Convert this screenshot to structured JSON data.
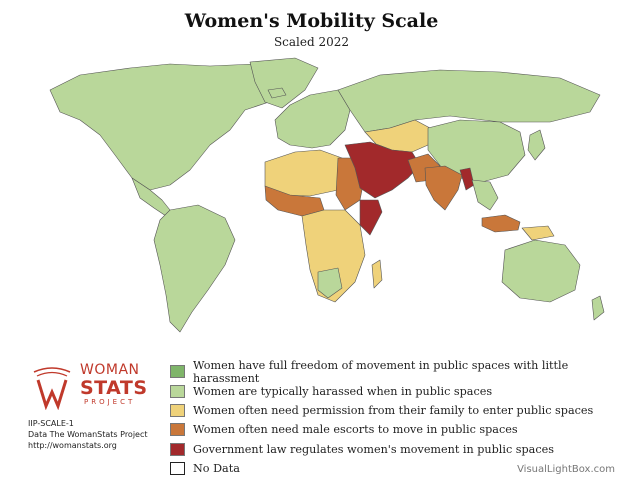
{
  "title": "Women's Mobility Scale",
  "subtitle": "Scaled 2022",
  "colors": {
    "level1": "#7fb56a",
    "level2": "#b9d79a",
    "level3": "#efd27a",
    "level4": "#c9773a",
    "level5": "#a2292b",
    "nodata": "#ffffff",
    "ocean": "#ffffff",
    "border": "#555555",
    "brand": "#c0392b"
  },
  "legend": [
    {
      "label": "Women have full freedom of movement in public spaces with little harassment",
      "color": "#7fb56a"
    },
    {
      "label": "Women are typically harassed when in public spaces",
      "color": "#b9d79a"
    },
    {
      "label": "Women often need permission from their family to enter public spaces",
      "color": "#efd27a"
    },
    {
      "label": "Women often need male escorts to move in public spaces",
      "color": "#c9773a"
    },
    {
      "label": "Government law regulates women's movement in public spaces",
      "color": "#a2292b"
    },
    {
      "label": "No Data",
      "color": "#ffffff"
    }
  ],
  "logo": {
    "line1": "WOMAN",
    "line2": "STATS",
    "line3": "PROJECT"
  },
  "meta": {
    "code": "IIP-SCALE-1",
    "source": "Data The WomanStats Project",
    "url": "http://womanstats.org"
  },
  "credit": "VisualLightBox.com"
}
